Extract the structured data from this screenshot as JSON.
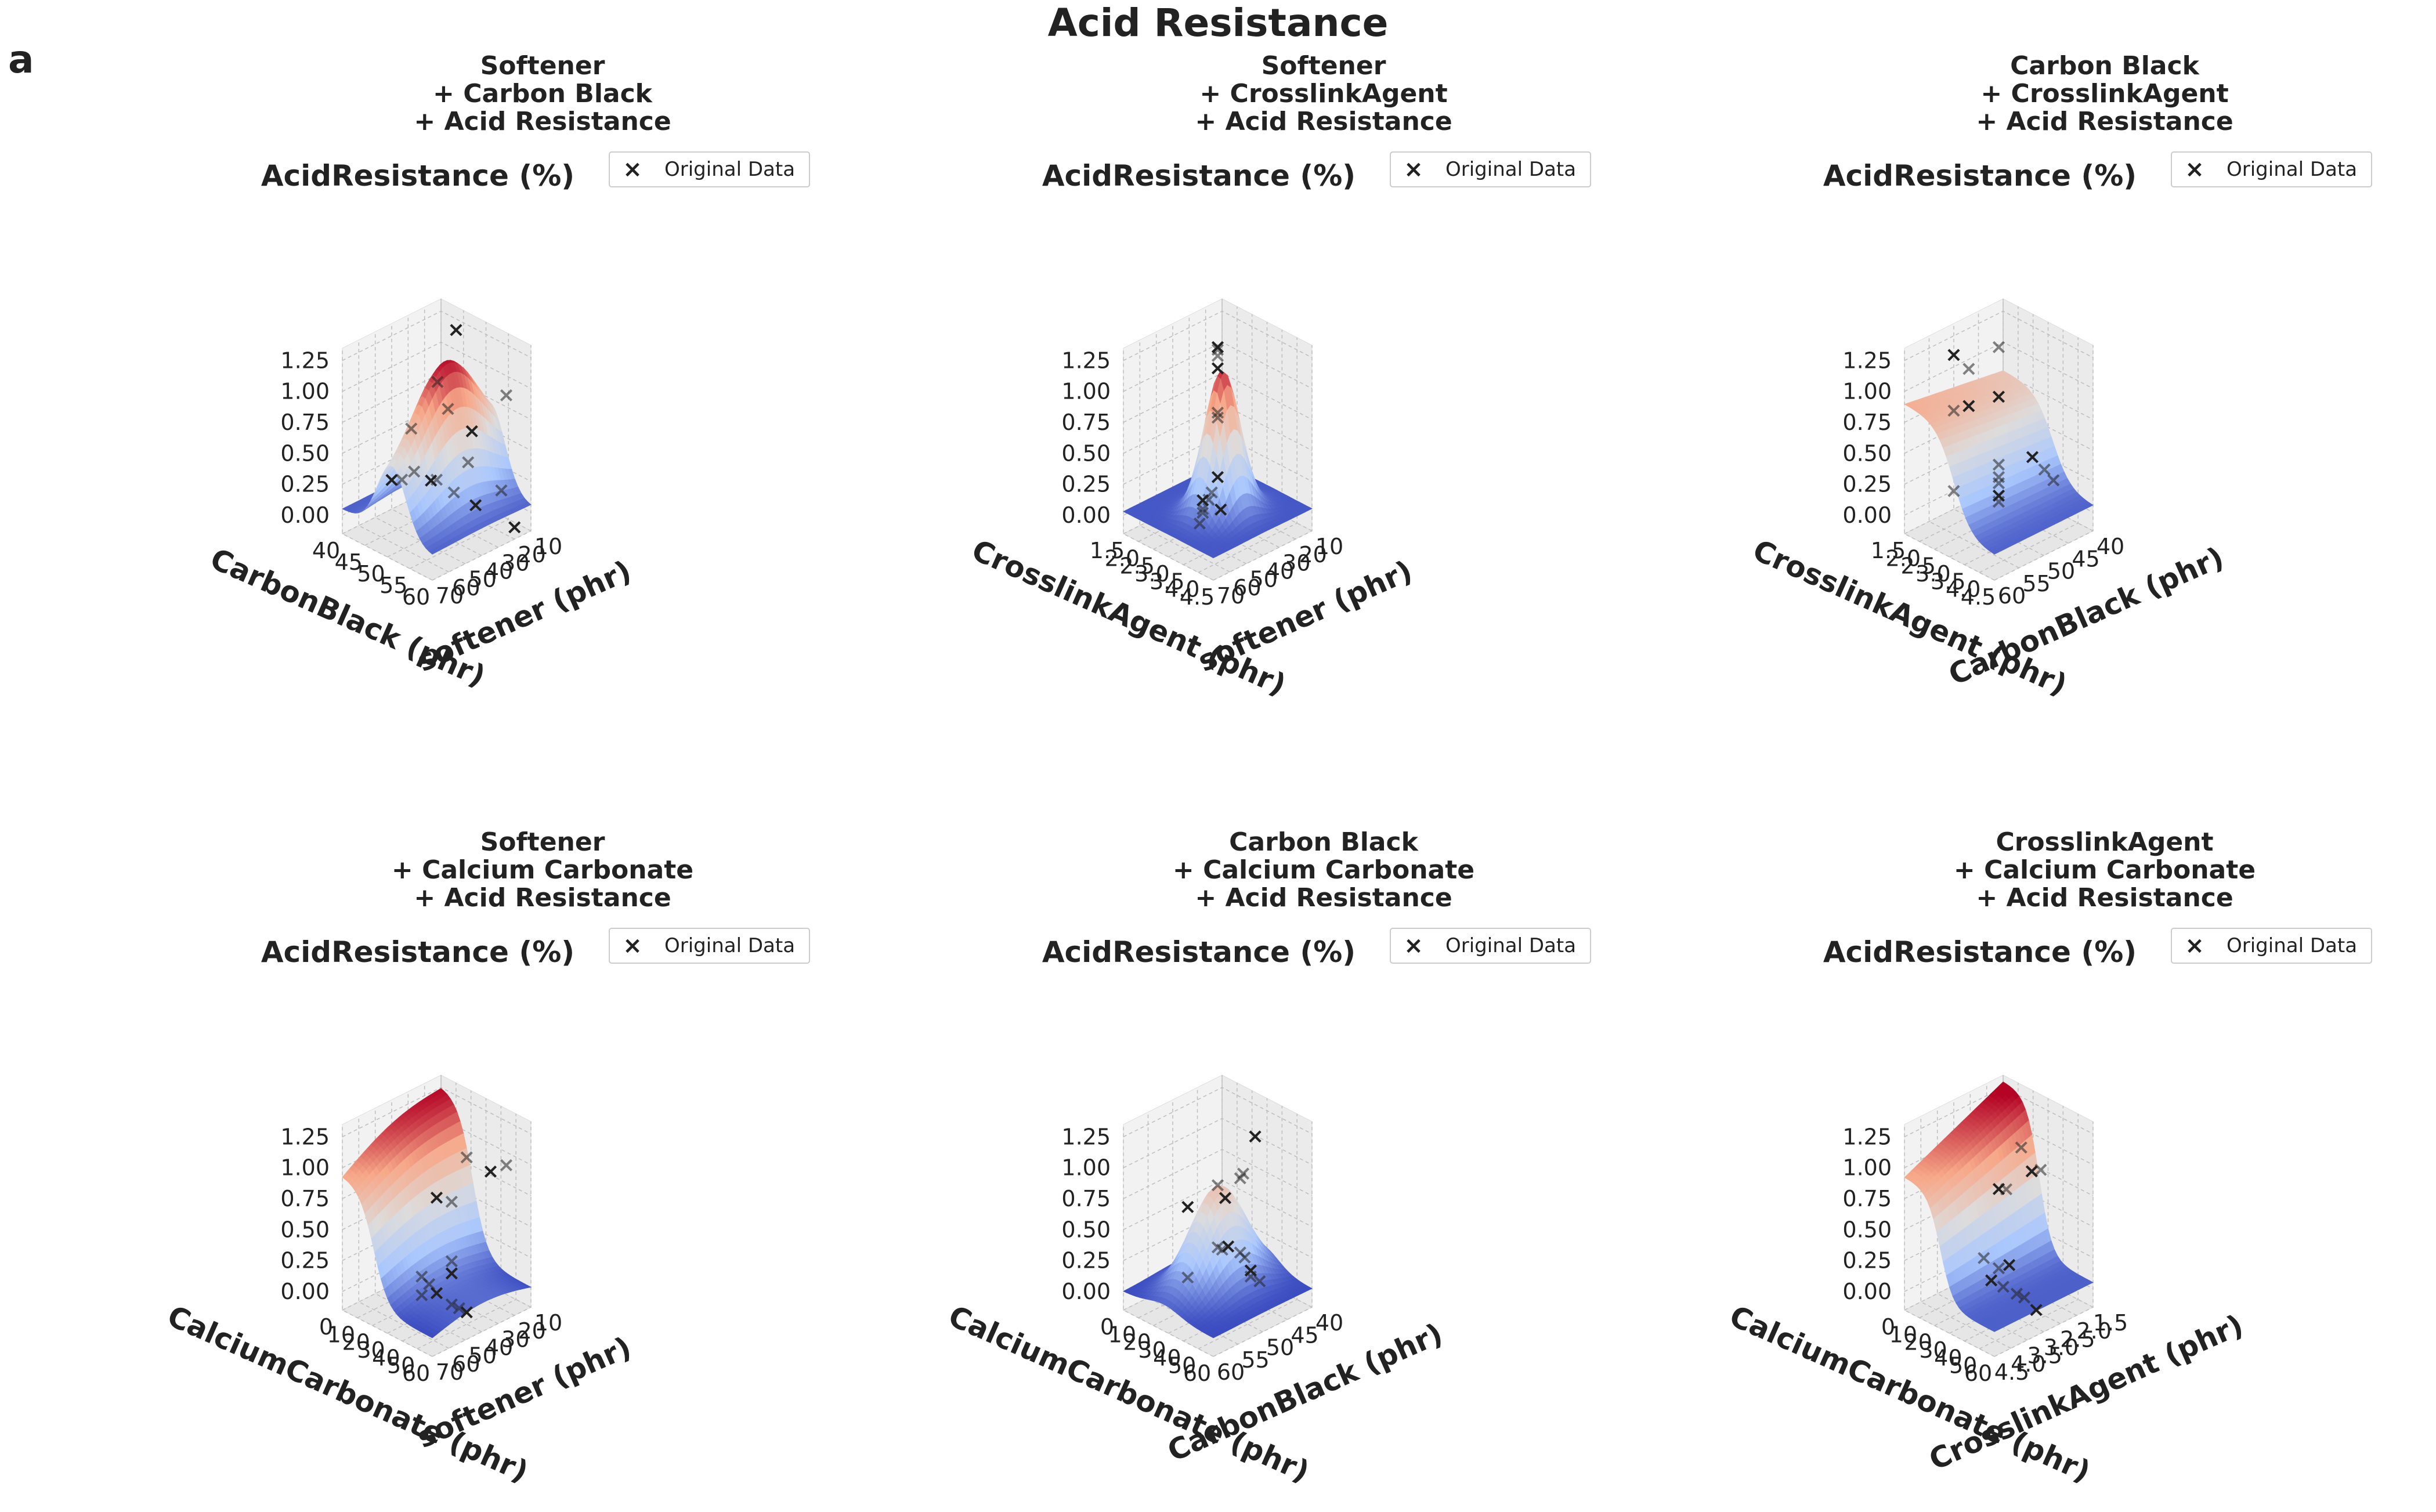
{
  "figure": {
    "title": "Acid Resistance",
    "panel_label": "a",
    "zlabel": "AcidResistance (%)",
    "legend_label": "Original Data",
    "colormap": [
      "#3b4cc0",
      "#aac7fd",
      "#dddcdc",
      "#f7a889",
      "#b40426"
    ]
  },
  "chart_data": [
    {
      "type": "surface3d",
      "title": [
        "Softener",
        "+ Carbon Black",
        "+ Acid Resistance"
      ],
      "ylabel": "CarbonBlack (phr)",
      "xlabel": "softener (phr)",
      "zlabel": "AcidResistance (%)",
      "y_ticks": [
        "40",
        "45",
        "50",
        "55",
        "60"
      ],
      "x_ticks": [
        "70",
        "60",
        "50",
        "40",
        "30",
        "20",
        "10"
      ],
      "z_ticks": [
        "0.00",
        "0.25",
        "0.50",
        "0.75",
        "1.00",
        "1.25"
      ],
      "ylim": [
        40,
        60
      ],
      "xlim": [
        70,
        10
      ],
      "zlim": [
        0,
        1.25
      ],
      "surface_peak": {
        "CarbonBlack": 50,
        "softener": 40,
        "AcidResistance": 1.18
      },
      "original_data": [
        [
          40,
          40,
          0.09
        ],
        [
          43,
          42,
          0.16
        ],
        [
          45,
          40,
          0.25
        ],
        [
          48,
          38,
          0.22
        ],
        [
          50,
          40,
          0.28
        ],
        [
          52,
          35,
          0.18
        ],
        [
          55,
          30,
          0.1
        ],
        [
          48,
          50,
          0.72
        ],
        [
          52,
          45,
          1.14
        ],
        [
          47,
          20,
          1.3
        ],
        [
          58,
          55,
          1.1
        ],
        [
          60,
          25,
          1.05
        ],
        [
          56,
          35,
          0.75
        ],
        [
          57,
          40,
          0.55
        ],
        [
          62,
          28,
          0.3
        ],
        [
          60,
          20,
          -0.05
        ]
      ]
    },
    {
      "type": "surface3d",
      "title": [
        "Softener",
        "+ CrosslinkAgent",
        "+ Acid Resistance"
      ],
      "ylabel": "CrosslinkAgent (phr)",
      "xlabel": "softener (phr)",
      "zlabel": "AcidResistance (%)",
      "y_ticks": [
        "1.5",
        "2.0",
        "2.5",
        "3.0",
        "3.5",
        "4.0",
        "4.5"
      ],
      "x_ticks": [
        "70",
        "60",
        "50",
        "40",
        "30",
        "20",
        "10"
      ],
      "z_ticks": [
        "0.00",
        "0.25",
        "0.50",
        "0.75",
        "1.00",
        "1.25"
      ],
      "ylim": [
        1.5,
        4.5
      ],
      "xlim": [
        70,
        10
      ],
      "zlim": [
        0,
        1.25
      ],
      "surface_peak": {
        "CrosslinkAgent": 3.0,
        "softener": 40,
        "AcidResistance": 1.15
      },
      "original_data": [
        [
          3.0,
          40,
          1.35
        ],
        [
          3.0,
          40,
          1.33
        ],
        [
          3.0,
          40,
          1.28
        ],
        [
          3.0,
          40,
          1.18
        ],
        [
          3.0,
          40,
          0.82
        ],
        [
          3.0,
          40,
          0.78
        ],
        [
          3.0,
          40,
          0.3
        ],
        [
          2.8,
          40,
          0.15
        ],
        [
          2.7,
          40,
          0.08
        ],
        [
          2.5,
          40,
          0.05
        ],
        [
          2.5,
          40,
          -0.02
        ],
        [
          2.5,
          40,
          -0.05
        ],
        [
          3.1,
          40,
          0.05
        ],
        [
          2.4,
          40,
          -0.15
        ]
      ]
    },
    {
      "type": "surface3d",
      "title": [
        "Carbon Black",
        "+ CrosslinkAgent",
        "+ Acid Resistance"
      ],
      "ylabel": "CrosslinkAgent (phr)",
      "xlabel": "CarbonBlack (phr)",
      "zlabel": "AcidResistance (%)",
      "y_ticks": [
        "1.5",
        "2.0",
        "2.5",
        "3.0",
        "3.5",
        "4.0",
        "4.5"
      ],
      "x_ticks": [
        "60",
        "55",
        "50",
        "45",
        "40"
      ],
      "z_ticks": [
        "0.00",
        "0.25",
        "0.50",
        "0.75",
        "1.00",
        "1.25"
      ],
      "ylim": [
        1.5,
        4.5
      ],
      "xlim": [
        60,
        40
      ],
      "zlim": [
        0,
        1.25
      ],
      "surface_peak": {
        "CrosslinkAgent": 2.0,
        "CarbonBlack": 50,
        "AcidResistance": 0.9
      },
      "original_data": [
        [
          1.5,
          50,
          1.1
        ],
        [
          2.0,
          50,
          1.05
        ],
        [
          1.5,
          50,
          0.65
        ],
        [
          2.0,
          50,
          0.75
        ],
        [
          1.5,
          50,
          0.0
        ],
        [
          3.0,
          50,
          1.35
        ],
        [
          3.0,
          50,
          0.95
        ],
        [
          3.0,
          50,
          0.4
        ],
        [
          3.0,
          50,
          0.25
        ],
        [
          3.0,
          50,
          0.15
        ],
        [
          3.0,
          50,
          0.1
        ],
        [
          3.0,
          50,
          0.3
        ],
        [
          3.3,
          45,
          0.4
        ],
        [
          3.7,
          45,
          0.35
        ],
        [
          4.0,
          45,
          0.3
        ]
      ]
    },
    {
      "type": "surface3d",
      "title": [
        "Softener",
        "+ Calcium Carbonate",
        "+ Acid Resistance"
      ],
      "ylabel": "CalciumCarbonate (phr)",
      "xlabel": "softener (phr)",
      "zlabel": "AcidResistance (%)",
      "y_ticks": [
        "0",
        "10",
        "20",
        "30",
        "40",
        "50",
        "60"
      ],
      "x_ticks": [
        "70",
        "60",
        "50",
        "40",
        "30",
        "20",
        "10"
      ],
      "z_ticks": [
        "0.00",
        "0.25",
        "0.50",
        "0.75",
        "1.00",
        "1.25"
      ],
      "ylim": [
        0,
        60
      ],
      "xlim": [
        70,
        10
      ],
      "zlim": [
        0,
        1.25
      ],
      "surface_peak": {
        "CalciumCarbonate": 60,
        "softener": 10,
        "AcidResistance": 1.25
      },
      "original_data": [
        [
          30,
          40,
          0.75
        ],
        [
          40,
          40,
          0.78
        ],
        [
          50,
          40,
          1.2
        ],
        [
          55,
          30,
          1.05
        ],
        [
          60,
          25,
          1.1
        ],
        [
          40,
          40,
          0.3
        ],
        [
          40,
          40,
          0.2
        ],
        [
          20,
          40,
          0.05
        ],
        [
          25,
          40,
          0.02
        ],
        [
          30,
          40,
          -0.02
        ],
        [
          40,
          40,
          -0.05
        ],
        [
          45,
          40,
          -0.05
        ],
        [
          50,
          40,
          -0.05
        ],
        [
          20,
          40,
          -0.1
        ]
      ]
    },
    {
      "type": "surface3d",
      "title": [
        "Carbon Black",
        "+ Calcium Carbonate",
        "+ Acid Resistance"
      ],
      "ylabel": "CalciumCarbonate (phr)",
      "xlabel": "CarbonBlack (phr)",
      "zlabel": "AcidResistance (%)",
      "y_ticks": [
        "0",
        "10",
        "20",
        "30",
        "40",
        "50",
        "60"
      ],
      "x_ticks": [
        "60",
        "55",
        "50",
        "45",
        "40"
      ],
      "z_ticks": [
        "0.00",
        "0.25",
        "0.50",
        "0.75",
        "1.00",
        "1.25"
      ],
      "ylim": [
        0,
        60
      ],
      "xlim": [
        60,
        40
      ],
      "zlim": [
        0,
        1.25
      ],
      "surface_peak": {
        "CalciumCarbonate": 40,
        "CarbonBlack": 50,
        "AcidResistance": 0.8
      },
      "original_data": [
        [
          10,
          50,
          0.55
        ],
        [
          10,
          50,
          -0.02
        ],
        [
          30,
          50,
          0.85
        ],
        [
          35,
          50,
          0.78
        ],
        [
          45,
          50,
          1.0
        ],
        [
          47,
          50,
          1.05
        ],
        [
          55,
          50,
          1.4
        ],
        [
          30,
          50,
          0.35
        ],
        [
          33,
          50,
          0.35
        ],
        [
          37,
          50,
          0.4
        ],
        [
          45,
          50,
          0.4
        ],
        [
          48,
          50,
          0.38
        ],
        [
          52,
          50,
          0.3
        ],
        [
          52,
          50,
          0.25
        ],
        [
          58,
          50,
          0.25
        ]
      ]
    },
    {
      "type": "surface3d",
      "title": [
        "CrosslinkAgent",
        "+ Calcium Carbonate",
        "+ Acid Resistance"
      ],
      "ylabel": "CalciumCarbonate (phr)",
      "xlabel": "CrosslinkAgent (phr)",
      "zlabel": "AcidResistance (%)",
      "y_ticks": [
        "0",
        "10",
        "20",
        "30",
        "40",
        "50",
        "60"
      ],
      "x_ticks": [
        "4.5",
        "4.0",
        "3.5",
        "3.0",
        "2.5",
        "2.0",
        "1.5"
      ],
      "z_ticks": [
        "0.00",
        "0.25",
        "0.50",
        "0.75",
        "1.00",
        "1.25"
      ],
      "ylim": [
        0,
        60
      ],
      "xlim": [
        4.5,
        1.5
      ],
      "zlim": [
        0,
        1.25
      ],
      "surface_peak": {
        "CalciumCarbonate": 60,
        "CrosslinkAgent": 1.5,
        "AcidResistance": 1.25
      },
      "original_data": [
        [
          30,
          3.0,
          0.82
        ],
        [
          35,
          3.0,
          0.85
        ],
        [
          45,
          3.0,
          1.25
        ],
        [
          52,
          3.0,
          1.1
        ],
        [
          58,
          3.0,
          1.15
        ],
        [
          20,
          3.0,
          0.2
        ],
        [
          25,
          3.0,
          0.05
        ],
        [
          30,
          3.0,
          0.18
        ],
        [
          33,
          3.0,
          0.05
        ],
        [
          37,
          3.0,
          0.25
        ],
        [
          42,
          3.0,
          0.05
        ],
        [
          47,
          3.0,
          0.05
        ],
        [
          55,
          3.0,
          0.0
        ]
      ]
    }
  ]
}
